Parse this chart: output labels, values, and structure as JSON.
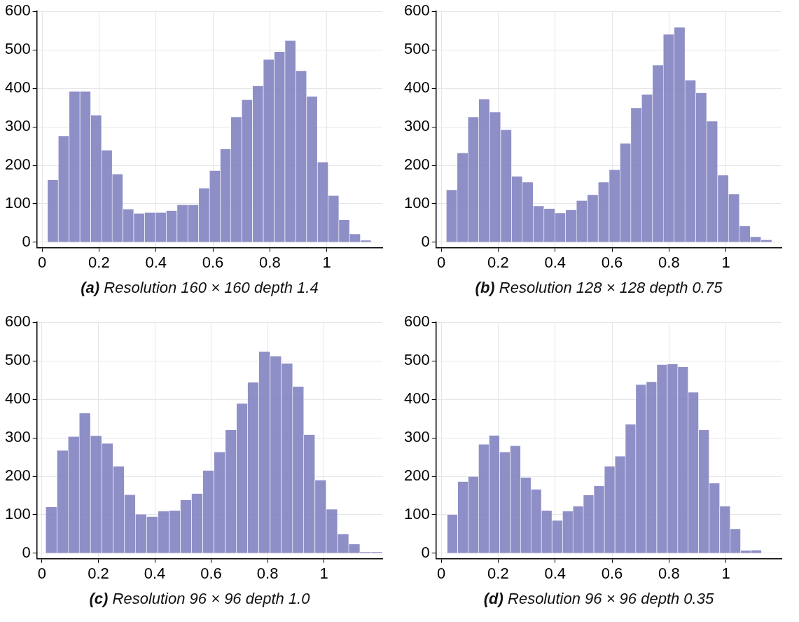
{
  "chart_data": [
    {
      "type": "histogram",
      "title": "(a) Resolution 160 × 160 depth 1.4",
      "color": "#8080c0",
      "grid": true,
      "bins": [
        0.019,
        0.057,
        0.095,
        0.133,
        0.171,
        0.209,
        0.246,
        0.284,
        0.322,
        0.36,
        0.398,
        0.436,
        0.474,
        0.512,
        0.55,
        0.588,
        0.626,
        0.663,
        0.701,
        0.739,
        0.777,
        0.815,
        0.853,
        0.891,
        0.929,
        0.967,
        1.005,
        1.042,
        1.08,
        1.118,
        1.156
      ],
      "values": [
        162,
        276,
        392,
        392,
        330,
        239,
        177,
        86,
        75,
        77,
        77,
        82,
        97,
        97,
        140,
        186,
        242,
        325,
        370,
        406,
        475,
        495,
        524,
        445,
        379,
        208,
        121,
        58,
        21,
        5
      ],
      "xlim": [
        -0.018,
        1.195
      ],
      "ylim": [
        -14,
        600
      ],
      "xticks": [
        0,
        0.2,
        0.4,
        0.6,
        0.8,
        1
      ],
      "yticks": [
        0,
        100,
        200,
        300,
        400,
        500,
        600
      ]
    },
    {
      "type": "histogram",
      "title": "(b) Resolution 128 × 128 depth 0.75",
      "color": "#8080c0",
      "grid": true,
      "bins": [
        0.018,
        0.056,
        0.094,
        0.132,
        0.17,
        0.209,
        0.247,
        0.285,
        0.323,
        0.361,
        0.399,
        0.437,
        0.475,
        0.513,
        0.551,
        0.59,
        0.628,
        0.666,
        0.704,
        0.742,
        0.78,
        0.818,
        0.856,
        0.894,
        0.932,
        0.971,
        1.009,
        1.047,
        1.085,
        1.123,
        1.161
      ],
      "values": [
        136,
        232,
        325,
        372,
        338,
        292,
        171,
        156,
        94,
        87,
        76,
        84,
        108,
        123,
        156,
        188,
        257,
        349,
        384,
        460,
        540,
        558,
        421,
        388,
        314,
        174,
        125,
        42,
        14,
        6
      ],
      "xlim": [
        -0.018,
        1.195
      ],
      "ylim": [
        -14,
        600
      ],
      "xticks": [
        0,
        0.2,
        0.4,
        0.6,
        0.8,
        1
      ],
      "yticks": [
        0,
        100,
        200,
        300,
        400,
        500,
        600
      ]
    },
    {
      "type": "histogram",
      "title": "(c) Resolution 96 × 96 depth 1.0",
      "color": "#8080c0",
      "grid": true,
      "bins": [
        0.013,
        0.053,
        0.093,
        0.132,
        0.172,
        0.212,
        0.252,
        0.292,
        0.331,
        0.371,
        0.411,
        0.451,
        0.491,
        0.53,
        0.57,
        0.61,
        0.65,
        0.69,
        0.729,
        0.769,
        0.809,
        0.849,
        0.889,
        0.928,
        0.968,
        1.008,
        1.048,
        1.088,
        1.127,
        1.167,
        1.207
      ],
      "values": [
        120,
        267,
        303,
        364,
        305,
        285,
        226,
        152,
        101,
        95,
        109,
        111,
        138,
        155,
        215,
        263,
        320,
        389,
        444,
        524,
        512,
        493,
        433,
        308,
        190,
        114,
        50,
        24,
        3,
        3
      ],
      "xlim": [
        -0.018,
        1.207
      ],
      "ylim": [
        -14,
        600
      ],
      "xticks": [
        0,
        0.2,
        0.4,
        0.6,
        0.8,
        1
      ],
      "yticks": [
        0,
        100,
        200,
        300,
        400,
        500,
        600
      ]
    },
    {
      "type": "histogram",
      "title": "(d) Resolution 96 × 96 depth 0.35",
      "color": "#8080c0",
      "grid": true,
      "bins": [
        0.021,
        0.058,
        0.095,
        0.131,
        0.168,
        0.205,
        0.242,
        0.279,
        0.315,
        0.352,
        0.389,
        0.426,
        0.463,
        0.499,
        0.536,
        0.573,
        0.61,
        0.647,
        0.683,
        0.72,
        0.757,
        0.794,
        0.831,
        0.867,
        0.904,
        0.941,
        0.978,
        1.015,
        1.051,
        1.088,
        1.125
      ],
      "values": [
        100,
        186,
        199,
        283,
        306,
        263,
        279,
        197,
        166,
        111,
        85,
        109,
        122,
        151,
        175,
        226,
        252,
        335,
        438,
        445,
        490,
        491,
        484,
        418,
        320,
        182,
        122,
        63,
        7,
        8
      ],
      "xlim": [
        -0.018,
        1.195
      ],
      "ylim": [
        -14,
        600
      ],
      "xticks": [
        0,
        0.2,
        0.4,
        0.6,
        0.8,
        1
      ],
      "yticks": [
        0,
        100,
        200,
        300,
        400,
        500,
        600
      ]
    }
  ]
}
